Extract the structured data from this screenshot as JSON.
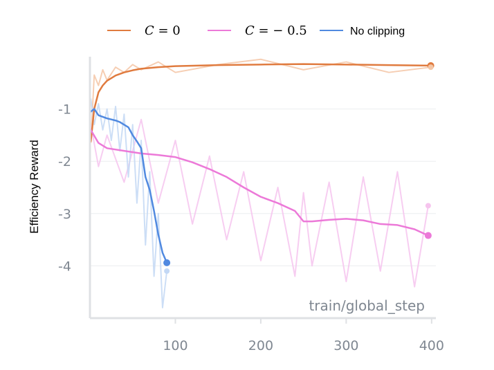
{
  "chart_data": {
    "type": "line",
    "title": "",
    "xlabel": "train/global_step",
    "ylabel": "Efficiency Reward",
    "xlim": [
      0,
      405
    ],
    "ylim": [
      -5.0,
      0.0
    ],
    "xticks": [
      "100",
      "200",
      "300",
      "400"
    ],
    "xtick_values": [
      100,
      200,
      300,
      400
    ],
    "yticks": [
      "-1",
      "-2",
      "-3",
      "-4"
    ],
    "ytick_values": [
      -1,
      -2,
      -3,
      -4
    ],
    "grid": "horizontal",
    "legend_position": "top",
    "legend": [
      {
        "label_italic": "C",
        "label_rest": " = 0",
        "color": "#e07b3f"
      },
      {
        "label_italic": "C",
        "label_rest": " = − 0.5",
        "color": "#ec79d8"
      },
      {
        "label_italic": "",
        "label_rest": "No clipping",
        "color": "#5089e0"
      }
    ],
    "series": [
      {
        "name": "C = 0",
        "color": "#e07b3f",
        "raw_color": "#f4c6a6",
        "x": [
          1,
          5,
          10,
          15,
          20,
          30,
          40,
          50,
          60,
          80,
          100,
          150,
          200,
          250,
          300,
          350,
          399
        ],
        "smoothed": [
          -1.62,
          -1.0,
          -0.68,
          -0.55,
          -0.46,
          -0.36,
          -0.3,
          -0.26,
          -0.23,
          -0.2,
          -0.18,
          -0.16,
          -0.15,
          -0.14,
          -0.15,
          -0.16,
          -0.17
        ],
        "raw": [
          -1.65,
          -0.35,
          -0.55,
          -0.25,
          -0.45,
          -0.2,
          -0.3,
          -0.15,
          -0.25,
          -0.1,
          -0.3,
          -0.15,
          -0.05,
          -0.25,
          -0.1,
          -0.3,
          -0.2
        ]
      },
      {
        "name": "C = − 0.5",
        "color": "#ec79d8",
        "raw_color": "#f6c4ee",
        "x": [
          1,
          10,
          20,
          40,
          60,
          80,
          100,
          120,
          140,
          160,
          180,
          200,
          220,
          240,
          250,
          260,
          280,
          300,
          320,
          340,
          360,
          380,
          396
        ],
        "smoothed": [
          -1.4,
          -1.65,
          -1.75,
          -1.8,
          -1.85,
          -1.88,
          -1.92,
          -2.02,
          -2.15,
          -2.3,
          -2.5,
          -2.68,
          -2.8,
          -2.95,
          -3.15,
          -3.15,
          -3.12,
          -3.1,
          -3.13,
          -3.2,
          -3.22,
          -3.3,
          -3.42
        ],
        "raw": [
          -1.3,
          -2.1,
          -1.5,
          -2.4,
          -1.2,
          -2.8,
          -1.6,
          -3.2,
          -1.9,
          -3.5,
          -2.2,
          -3.9,
          -2.5,
          -4.2,
          -2.6,
          -4.0,
          -2.4,
          -4.3,
          -2.3,
          -4.1,
          -2.2,
          -4.4,
          -2.85
        ]
      },
      {
        "name": "No clipping",
        "color": "#5089e0",
        "raw_color": "#c3d8f5",
        "x": [
          1,
          5,
          10,
          15,
          20,
          25,
          30,
          35,
          40,
          45,
          50,
          55,
          60,
          65,
          70,
          75,
          80,
          85,
          90
        ],
        "smoothed": [
          -1.05,
          -1.0,
          -1.12,
          -1.15,
          -1.18,
          -1.2,
          -1.22,
          -1.25,
          -1.3,
          -1.35,
          -1.5,
          -1.62,
          -1.75,
          -2.3,
          -2.55,
          -2.95,
          -3.4,
          -3.75,
          -3.94
        ],
        "raw": [
          -0.8,
          -1.3,
          -0.9,
          -1.4,
          -1.0,
          -1.6,
          -0.95,
          -1.8,
          -1.1,
          -2.3,
          -1.3,
          -2.8,
          -1.6,
          -3.6,
          -2.2,
          -4.2,
          -3.0,
          -4.8,
          -4.1
        ]
      }
    ]
  }
}
